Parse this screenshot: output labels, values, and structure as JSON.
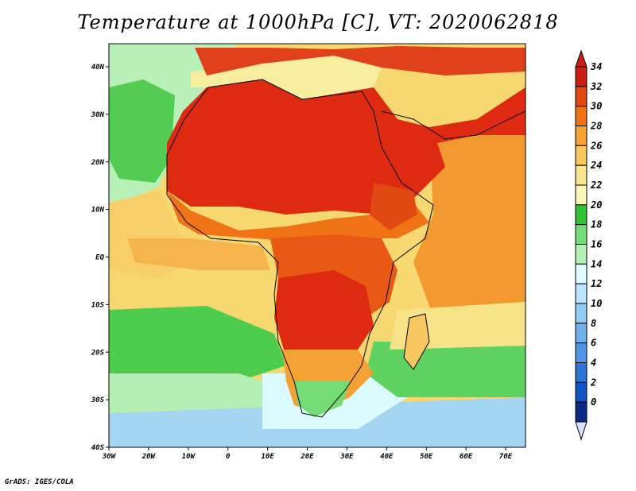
{
  "title": "Temperature at 1000hPa [C], VT: 2020062818",
  "credit": "GrADS: IGES/COLA",
  "map": {
    "lon_labels": [
      "30W",
      "20W",
      "10W",
      "0",
      "10E",
      "20E",
      "30E",
      "40E",
      "50E",
      "60E",
      "70E"
    ],
    "lat_labels": [
      "40N",
      "30N",
      "20N",
      "10N",
      "EQ",
      "10S",
      "20S",
      "30S",
      "40S"
    ],
    "regions": [
      {
        "name": "sea-temperate",
        "color": "#6fdc6f"
      },
      {
        "name": "sea-north-atlantic",
        "color": "#b4f0b4"
      },
      {
        "name": "sea-south-atlantic-warm",
        "color": "#f5d870"
      },
      {
        "name": "southern-ocean-cool",
        "color": "#a6d8f0"
      },
      {
        "name": "indian-ocean",
        "color": "#f2a33a"
      },
      {
        "name": "sahara-hot",
        "color": "#dd2a10"
      },
      {
        "name": "mediterranean",
        "color": "#f7eea0"
      }
    ]
  },
  "colorbar": {
    "labels": [
      "34",
      "32",
      "30",
      "28",
      "26",
      "24",
      "22",
      "20",
      "18",
      "16",
      "14",
      "12",
      "10",
      "8",
      "6",
      "4",
      "2",
      "0"
    ],
    "colors": [
      "#cc1e0e",
      "#e04a12",
      "#f07316",
      "#f5a235",
      "#f7c860",
      "#f9e590",
      "#fbf6bc",
      "#33c233",
      "#74dc74",
      "#b4f0b4",
      "#e0fbff",
      "#bae4ff",
      "#92cbf5",
      "#6fb1ec",
      "#4f95e3",
      "#2f75d8",
      "#1353c4",
      "#0a2a8a"
    ],
    "top_color": "#cc1e0e",
    "bottom_color": "#dcdcff"
  }
}
